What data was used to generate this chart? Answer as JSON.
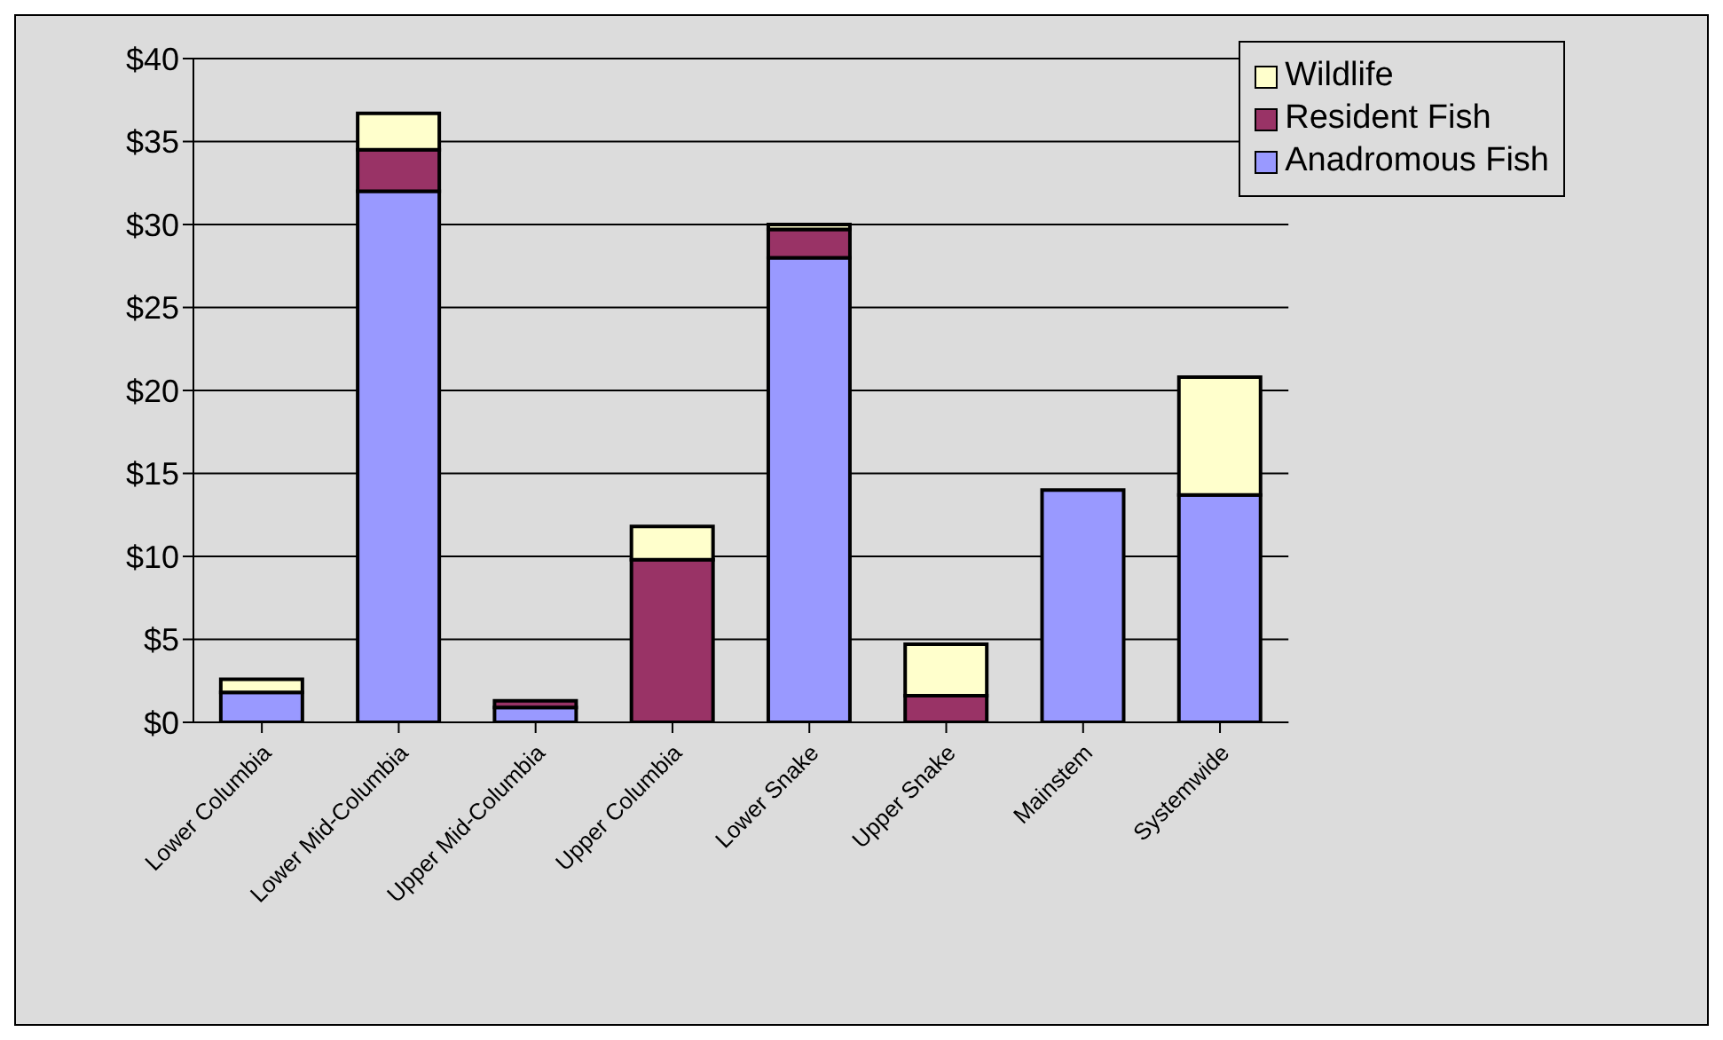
{
  "chart_data": {
    "type": "bar",
    "stacked": true,
    "categories": [
      "Lower Columbia",
      "Lower Mid-Columbia",
      "Upper Mid-Columbia",
      "Upper Columbia",
      "Lower Snake",
      "Upper Snake",
      "Mainstem",
      "Systemwide"
    ],
    "series": [
      {
        "name": "Anadromous Fish",
        "color": "#9999ff",
        "values": [
          1.8,
          32.0,
          0.9,
          0,
          28.0,
          0,
          14.0,
          13.7
        ]
      },
      {
        "name": "Resident Fish",
        "color": "#993366",
        "values": [
          0,
          2.5,
          0.4,
          9.8,
          1.7,
          1.6,
          0,
          null
        ]
      },
      {
        "name": "Wildlife",
        "color": "#ffffcc",
        "values": [
          0.8,
          2.2,
          0,
          2.0,
          0.3,
          3.1,
          0,
          7.1
        ]
      }
    ],
    "ylim": [
      0,
      40
    ],
    "yticks": [
      {
        "value": 0,
        "label": "$0"
      },
      {
        "value": 5,
        "label": "$5"
      },
      {
        "value": 10,
        "label": "$10"
      },
      {
        "value": 15,
        "label": "$15"
      },
      {
        "value": 20,
        "label": "$20"
      },
      {
        "value": 25,
        "label": "$25"
      },
      {
        "value": 30,
        "label": "$30"
      },
      {
        "value": 35,
        "label": "$35"
      },
      {
        "value": 40,
        "label": "$40"
      }
    ],
    "grid": "y",
    "legend": "top right"
  }
}
